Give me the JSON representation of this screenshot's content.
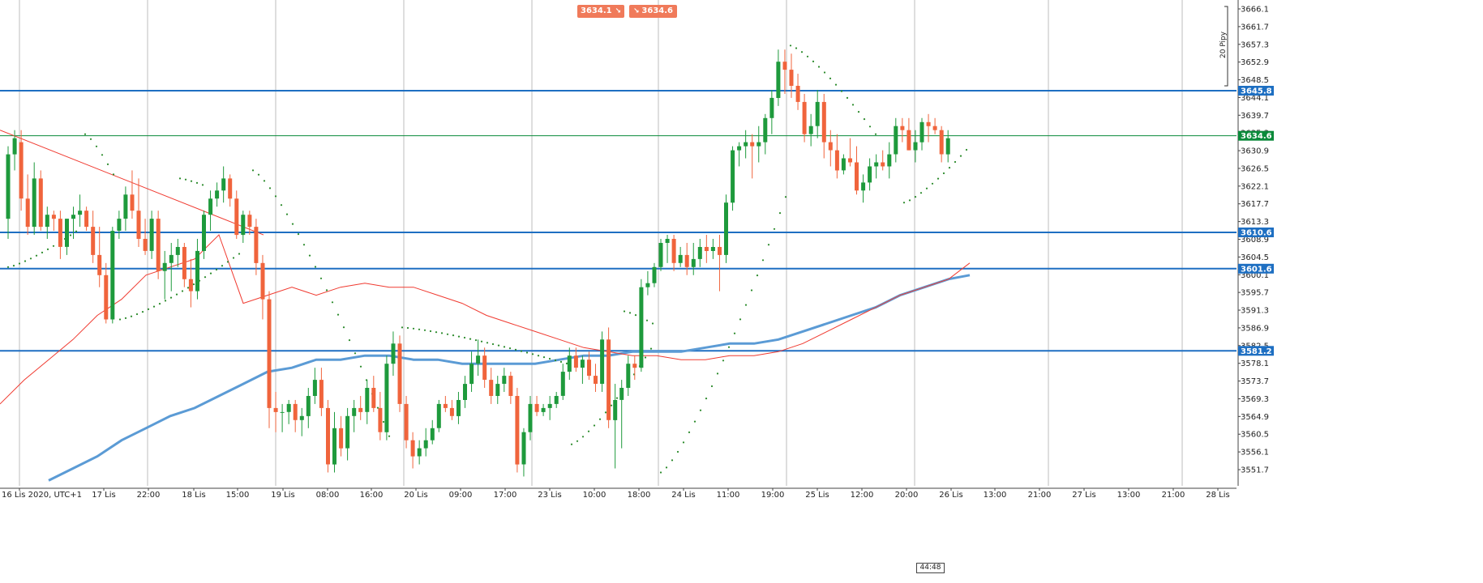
{
  "toolbar": {
    "sell_price": "3634.1",
    "buy_price": "3634.6",
    "sell_arrow": "↘",
    "buy_arrow": "↘"
  },
  "chart_data": {
    "type": "candlestick",
    "price_axis": {
      "ticks": [
        "3666.1",
        "3661.7",
        "3657.3",
        "3652.9",
        "3648.5",
        "3644.1",
        "3639.7",
        "3635.3",
        "3630.9",
        "3626.5",
        "3622.1",
        "3617.7",
        "3613.3",
        "3608.9",
        "3604.5",
        "3600.1",
        "3595.7",
        "3591.3",
        "3586.9",
        "3582.5",
        "3578.1",
        "3573.7",
        "3569.3",
        "3564.9",
        "3560.5",
        "3556.1",
        "3551.7"
      ],
      "range": [
        3549.5,
        3667.5
      ],
      "scale_label": "20 Pipy"
    },
    "time_axis": {
      "labels": [
        "16 Lis 2020, UTC+1",
        "17 Lis",
        "22:00",
        "18 Lis",
        "15:00",
        "19 Lis",
        "08:00",
        "16:00",
        "20 Lis",
        "09:00",
        "17:00",
        "23 Lis",
        "10:00",
        "18:00",
        "24 Lis",
        "11:00",
        "19:00",
        "25 Lis",
        "12:00",
        "20:00",
        "26 Lis",
        "13:00",
        "21:00",
        "27 Lis",
        "13:00",
        "21:00",
        "28 Lis"
      ]
    },
    "horizontal_levels": [
      {
        "price": 3645.8,
        "label": "3645.8",
        "color": "#1e6fc2"
      },
      {
        "price": 3610.6,
        "label": "3610.6",
        "color": "#1e6fc2"
      },
      {
        "price": 3601.6,
        "label": "3601.6",
        "color": "#1e6fc2"
      },
      {
        "price": 3581.2,
        "label": "3581.2",
        "color": "#1e6fc2"
      }
    ],
    "current_price": {
      "price": 3634.6,
      "label": "3634.6",
      "color": "#0a8a3a"
    },
    "colors": {
      "up": "#1e9a3c",
      "down": "#f0643c",
      "ma_fast": "#f03a30",
      "ma_slow": "#5b9bd5",
      "psar": "#2a8a2a",
      "trendline": "#f03a30",
      "grid": "#bdbdbd"
    },
    "candles": [
      [
        3614,
        3632,
        3609,
        3630
      ],
      [
        3630,
        3636,
        3626,
        3634
      ],
      [
        3633,
        3636,
        3616,
        3619
      ],
      [
        3619,
        3625,
        3610,
        3612
      ],
      [
        3612,
        3628,
        3610,
        3624
      ],
      [
        3624,
        3626,
        3611,
        3612
      ],
      [
        3612,
        3617,
        3609,
        3615
      ],
      [
        3615,
        3616,
        3611,
        3614
      ],
      [
        3614,
        3616,
        3604,
        3607
      ],
      [
        3607,
        3614,
        3605,
        3614
      ],
      [
        3614,
        3617,
        3609,
        3615
      ],
      [
        3615,
        3620,
        3612,
        3616
      ],
      [
        3616,
        3617,
        3611,
        3612
      ],
      [
        3612,
        3616,
        3603,
        3605
      ],
      [
        3605,
        3612,
        3597,
        3600
      ],
      [
        3600,
        3603,
        3588,
        3589
      ],
      [
        3589,
        3612,
        3588,
        3611
      ],
      [
        3611,
        3616,
        3609,
        3614
      ],
      [
        3614,
        3622,
        3611,
        3620
      ],
      [
        3620,
        3626,
        3614,
        3616
      ],
      [
        3616,
        3624,
        3607,
        3609
      ],
      [
        3609,
        3614,
        3605,
        3606
      ],
      [
        3606,
        3616,
        3604,
        3614
      ],
      [
        3614,
        3616,
        3599,
        3601
      ],
      [
        3601,
        3606,
        3594,
        3603
      ],
      [
        3603,
        3608,
        3596,
        3605
      ],
      [
        3605,
        3609,
        3602,
        3607
      ],
      [
        3607,
        3608,
        3597,
        3599
      ],
      [
        3599,
        3604,
        3592,
        3596
      ],
      [
        3596,
        3609,
        3594,
        3606
      ],
      [
        3606,
        3616,
        3604,
        3615
      ],
      [
        3615,
        3621,
        3611,
        3619
      ],
      [
        3619,
        3623,
        3617,
        3621
      ],
      [
        3621,
        3627,
        3618,
        3624
      ],
      [
        3624,
        3625,
        3617,
        3619
      ],
      [
        3619,
        3621,
        3609,
        3610
      ],
      [
        3610,
        3616,
        3608,
        3615
      ],
      [
        3615,
        3616,
        3610,
        3612
      ],
      [
        3612,
        3614,
        3600,
        3603
      ],
      [
        3603,
        3605,
        3589,
        3594
      ],
      [
        3594,
        3596,
        3562,
        3567
      ],
      [
        3567,
        3571,
        3561,
        3566
      ],
      [
        3566,
        3568,
        3561,
        3566
      ],
      [
        3566,
        3569,
        3563,
        3568
      ],
      [
        3568,
        3569,
        3561,
        3564
      ],
      [
        3564,
        3567,
        3560,
        3565
      ],
      [
        3565,
        3572,
        3562,
        3570
      ],
      [
        3570,
        3577,
        3568,
        3574
      ],
      [
        3574,
        3577,
        3565,
        3567
      ],
      [
        3567,
        3569,
        3551,
        3553
      ],
      [
        3553,
        3566,
        3551,
        3562
      ],
      [
        3562,
        3565,
        3555,
        3557
      ],
      [
        3557,
        3567,
        3554,
        3565
      ],
      [
        3565,
        3569,
        3561,
        3567
      ],
      [
        3567,
        3570,
        3564,
        3566
      ],
      [
        3566,
        3574,
        3563,
        3572
      ],
      [
        3572,
        3575,
        3566,
        3567
      ],
      [
        3567,
        3571,
        3559,
        3561
      ],
      [
        3561,
        3580,
        3559,
        3578
      ],
      [
        3578,
        3586,
        3575,
        3583
      ],
      [
        3583,
        3585,
        3566,
        3568
      ],
      [
        3568,
        3570,
        3557,
        3559
      ],
      [
        3559,
        3561,
        3552,
        3555
      ],
      [
        3555,
        3559,
        3553,
        3557
      ],
      [
        3557,
        3562,
        3555,
        3559
      ],
      [
        3559,
        3564,
        3558,
        3562
      ],
      [
        3562,
        3569,
        3561,
        3568
      ],
      [
        3568,
        3570,
        3566,
        3567
      ],
      [
        3567,
        3569,
        3564,
        3565
      ],
      [
        3565,
        3571,
        3563,
        3569
      ],
      [
        3569,
        3575,
        3567,
        3573
      ],
      [
        3573,
        3581,
        3571,
        3578
      ],
      [
        3578,
        3584,
        3575,
        3580
      ],
      [
        3580,
        3582,
        3572,
        3574
      ],
      [
        3574,
        3577,
        3568,
        3570
      ],
      [
        3570,
        3575,
        3568,
        3573
      ],
      [
        3573,
        3577,
        3571,
        3575
      ],
      [
        3575,
        3576,
        3568,
        3570
      ],
      [
        3570,
        3572,
        3551,
        3553
      ],
      [
        3553,
        3562,
        3550,
        3561
      ],
      [
        3561,
        3570,
        3559,
        3568
      ],
      [
        3568,
        3570,
        3565,
        3566
      ],
      [
        3566,
        3568,
        3565,
        3567
      ],
      [
        3567,
        3570,
        3564,
        3568
      ],
      [
        3568,
        3571,
        3567,
        3570
      ],
      [
        3570,
        3578,
        3569,
        3576
      ],
      [
        3576,
        3582,
        3574,
        3580
      ],
      [
        3580,
        3582,
        3576,
        3577
      ],
      [
        3577,
        3580,
        3573,
        3579
      ],
      [
        3579,
        3581,
        3574,
        3575
      ],
      [
        3575,
        3578,
        3571,
        3573
      ],
      [
        3573,
        3586,
        3571,
        3584
      ],
      [
        3584,
        3587,
        3562,
        3564
      ],
      [
        3564,
        3573,
        3552,
        3569
      ],
      [
        3569,
        3574,
        3557,
        3572
      ],
      [
        3572,
        3580,
        3570,
        3578
      ],
      [
        3578,
        3580,
        3574,
        3577
      ],
      [
        3577,
        3599,
        3576,
        3597
      ],
      [
        3597,
        3601,
        3595,
        3598
      ],
      [
        3598,
        3603,
        3597,
        3602
      ],
      [
        3602,
        3609,
        3601,
        3608
      ],
      [
        3608,
        3610,
        3603,
        3609
      ],
      [
        3609,
        3610,
        3601,
        3603
      ],
      [
        3603,
        3607,
        3602,
        3605
      ],
      [
        3605,
        3608,
        3600,
        3602
      ],
      [
        3602,
        3608,
        3600,
        3604
      ],
      [
        3604,
        3609,
        3602,
        3607
      ],
      [
        3607,
        3610,
        3603,
        3606
      ],
      [
        3606,
        3609,
        3604,
        3607
      ],
      [
        3607,
        3610,
        3596,
        3605
      ],
      [
        3605,
        3620,
        3603,
        3618
      ],
      [
        3618,
        3632,
        3616,
        3631
      ],
      [
        3631,
        3633,
        3627,
        3632
      ],
      [
        3632,
        3636,
        3629,
        3633
      ],
      [
        3633,
        3635,
        3624,
        3632
      ],
      [
        3632,
        3637,
        3628,
        3633
      ],
      [
        3633,
        3640,
        3630,
        3639
      ],
      [
        3639,
        3646,
        3635,
        3644
      ],
      [
        3644,
        3656,
        3642,
        3653
      ],
      [
        3653,
        3656,
        3645,
        3651
      ],
      [
        3651,
        3655,
        3644,
        3647
      ],
      [
        3647,
        3650,
        3641,
        3643
      ],
      [
        3643,
        3645,
        3633,
        3635
      ],
      [
        3635,
        3640,
        3632,
        3637
      ],
      [
        3637,
        3646,
        3634,
        3643
      ],
      [
        3643,
        3645,
        3629,
        3633
      ],
      [
        3633,
        3636,
        3627,
        3631
      ],
      [
        3631,
        3635,
        3624,
        3626
      ],
      [
        3626,
        3630,
        3625,
        3629
      ],
      [
        3629,
        3634,
        3627,
        3628
      ],
      [
        3628,
        3632,
        3620,
        3621
      ],
      [
        3621,
        3625,
        3618,
        3623
      ],
      [
        3623,
        3629,
        3621,
        3627
      ],
      [
        3627,
        3630,
        3624,
        3628
      ],
      [
        3628,
        3631,
        3626,
        3627
      ],
      [
        3627,
        3633,
        3624,
        3630
      ],
      [
        3630,
        3639,
        3628,
        3637
      ],
      [
        3637,
        3639,
        3633,
        3636
      ],
      [
        3636,
        3639,
        3631,
        3631
      ],
      [
        3631,
        3636,
        3628,
        3633
      ],
      [
        3633,
        3639,
        3631,
        3638
      ],
      [
        3638,
        3640,
        3633,
        3637
      ],
      [
        3637,
        3639,
        3635,
        3636
      ],
      [
        3636,
        3637,
        3628,
        3630
      ],
      [
        3630,
        3636,
        3628,
        3634
      ]
    ],
    "ma_fast": [
      [
        0,
        3568
      ],
      [
        30,
        3574
      ],
      [
        60,
        3579
      ],
      [
        90,
        3584
      ],
      [
        120,
        3590
      ],
      [
        150,
        3594
      ],
      [
        180,
        3600
      ],
      [
        210,
        3602
      ],
      [
        240,
        3604
      ],
      [
        270,
        3610
      ],
      [
        300,
        3593
      ],
      [
        330,
        3595
      ],
      [
        360,
        3597
      ],
      [
        390,
        3595
      ],
      [
        420,
        3597
      ],
      [
        450,
        3598
      ],
      [
        480,
        3597
      ],
      [
        510,
        3597
      ],
      [
        540,
        3595
      ],
      [
        570,
        3593
      ],
      [
        600,
        3590
      ],
      [
        630,
        3588
      ],
      [
        660,
        3586
      ],
      [
        690,
        3584
      ],
      [
        720,
        3582
      ],
      [
        750,
        3581
      ],
      [
        780,
        3580
      ],
      [
        810,
        3580
      ],
      [
        840,
        3579
      ],
      [
        870,
        3579
      ],
      [
        900,
        3580
      ],
      [
        930,
        3580
      ],
      [
        960,
        3581
      ],
      [
        990,
        3583
      ],
      [
        1020,
        3586
      ],
      [
        1050,
        3589
      ],
      [
        1080,
        3592
      ],
      [
        1110,
        3595
      ],
      [
        1140,
        3597
      ],
      [
        1170,
        3599
      ],
      [
        1196,
        3603
      ]
    ],
    "ma_slow": [
      [
        60,
        3549
      ],
      [
        90,
        3552
      ],
      [
        120,
        3555
      ],
      [
        150,
        3559
      ],
      [
        180,
        3562
      ],
      [
        210,
        3565
      ],
      [
        240,
        3567
      ],
      [
        270,
        3570
      ],
      [
        300,
        3573
      ],
      [
        330,
        3576
      ],
      [
        360,
        3577
      ],
      [
        390,
        3579
      ],
      [
        420,
        3579
      ],
      [
        450,
        3580
      ],
      [
        480,
        3580
      ],
      [
        510,
        3579
      ],
      [
        540,
        3579
      ],
      [
        570,
        3578
      ],
      [
        600,
        3578
      ],
      [
        630,
        3578
      ],
      [
        660,
        3578
      ],
      [
        690,
        3579
      ],
      [
        720,
        3580
      ],
      [
        750,
        3580
      ],
      [
        780,
        3581
      ],
      [
        810,
        3581
      ],
      [
        840,
        3581
      ],
      [
        870,
        3582
      ],
      [
        900,
        3583
      ],
      [
        930,
        3583
      ],
      [
        960,
        3584
      ],
      [
        990,
        3586
      ],
      [
        1020,
        3588
      ],
      [
        1050,
        3590
      ],
      [
        1080,
        3592
      ],
      [
        1110,
        3595
      ],
      [
        1140,
        3597
      ],
      [
        1170,
        3599
      ],
      [
        1196,
        3600
      ]
    ],
    "trendline": [
      [
        0,
        3636
      ],
      [
        325,
        3610
      ]
    ],
    "psar_segments": [
      {
        "from": 10,
        "to": 95,
        "p0": 3602,
        "p1": 3611
      },
      {
        "from": 105,
        "to": 140,
        "p0": 3635,
        "p1": 3625
      },
      {
        "from": 148,
        "to": 300,
        "p0": 3589,
        "p1": 3606
      },
      {
        "from": 222,
        "to": 255,
        "p0": 3624,
        "p1": 3622
      },
      {
        "from": 312,
        "to": 480,
        "p0": 3626,
        "p1": 3560
      },
      {
        "from": 496,
        "to": 700,
        "p0": 3587,
        "p1": 3578
      },
      {
        "from": 705,
        "to": 807,
        "p0": 3558,
        "p1": 3583
      },
      {
        "from": 770,
        "to": 805,
        "p0": 3591,
        "p1": 3588
      },
      {
        "from": 815,
        "to": 970,
        "p0": 3551,
        "p1": 3620
      },
      {
        "from": 975,
        "to": 1080,
        "p0": 3657,
        "p1": 3635
      },
      {
        "from": 1115,
        "to": 1196,
        "p0": 3618,
        "p1": 3632
      }
    ]
  },
  "countdown": "44:48"
}
